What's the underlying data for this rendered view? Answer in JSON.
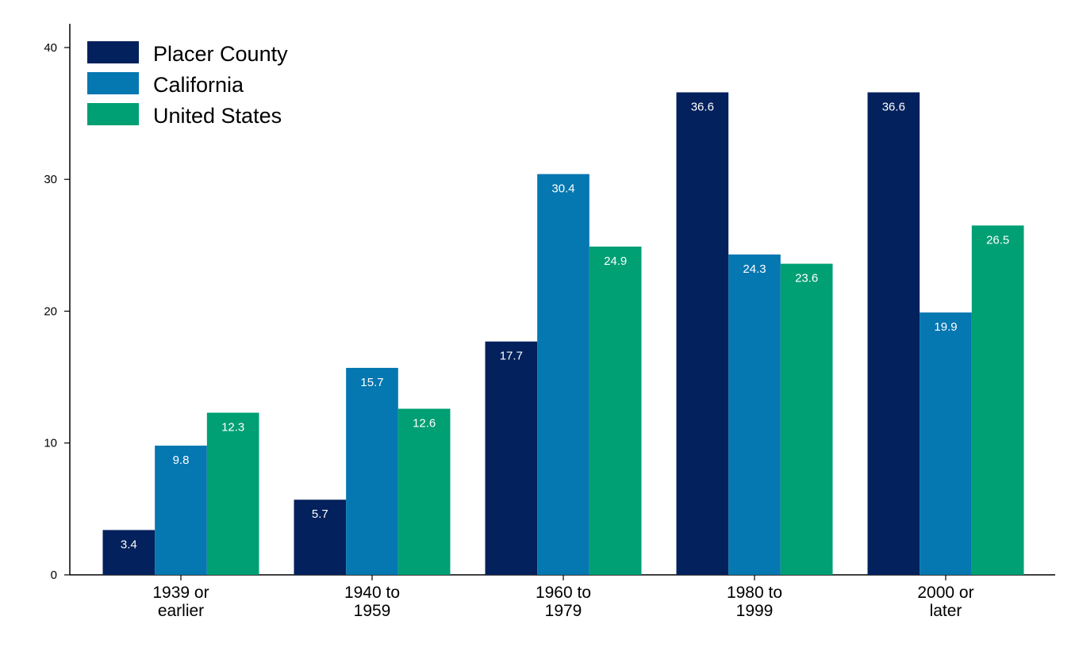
{
  "chart_data": {
    "type": "bar",
    "title": "",
    "xlabel": "",
    "ylabel": "",
    "categories": [
      [
        "1939 or",
        "earlier"
      ],
      [
        "1940 to",
        "1959"
      ],
      [
        "1960 to",
        "1979"
      ],
      [
        "1980 to",
        "1999"
      ],
      [
        "2000 or",
        "later"
      ]
    ],
    "series": [
      {
        "name": "Placer County",
        "color": "#03215c",
        "values": [
          3.4,
          5.7,
          17.7,
          36.6,
          36.6
        ]
      },
      {
        "name": "California",
        "color": "#0577b1",
        "values": [
          9.8,
          15.7,
          30.4,
          24.3,
          19.9
        ]
      },
      {
        "name": "United States",
        "color": "#009f74",
        "values": [
          12.3,
          12.6,
          24.9,
          23.6,
          26.5
        ]
      }
    ],
    "ylim": [
      0,
      41.8
    ],
    "yticks": [
      0,
      10,
      20,
      30,
      40
    ],
    "grid": false,
    "legend_position": "top-left",
    "data_labels": true
  }
}
